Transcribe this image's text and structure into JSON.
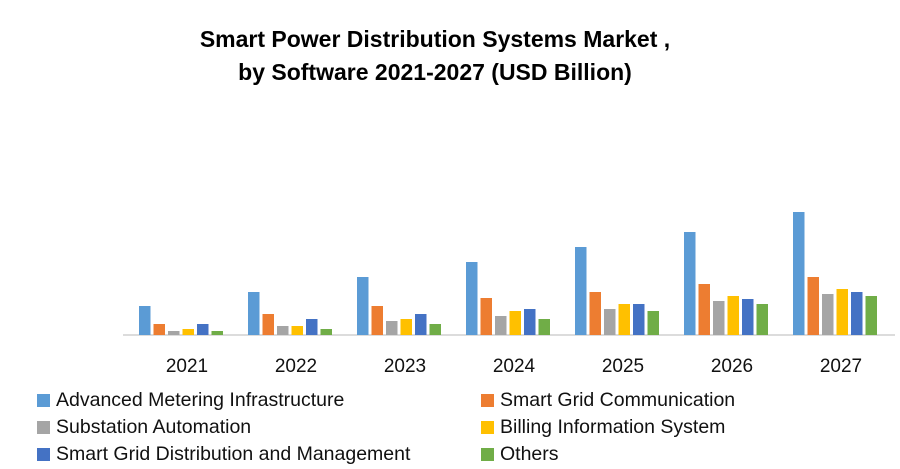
{
  "chart_data": {
    "type": "bar",
    "title": "Smart Power Distribution Systems Market ,",
    "subtitle": "by Software 2021-2027 (USD Billion)",
    "xlabel": "",
    "ylabel": "",
    "ylim": [
      0,
      13.5
    ],
    "grid": false,
    "legend_placement": "bottom",
    "categories": [
      "2021",
      "2022",
      "2023",
      "2024",
      "2025",
      "2026",
      "2027"
    ],
    "series": [
      {
        "name": "Advanced Metering Infrastructure",
        "color": "#5B9BD5",
        "values": [
          2.9,
          4.3,
          5.8,
          7.3,
          8.8,
          10.3,
          12.3
        ]
      },
      {
        "name": "Smart Grid Communication",
        "color": "#ED7D31",
        "values": [
          1.1,
          2.1,
          2.9,
          3.7,
          4.3,
          5.1,
          5.8
        ]
      },
      {
        "name": "Substation Automation",
        "color": "#A5A5A5",
        "values": [
          0.4,
          0.9,
          1.4,
          1.9,
          2.6,
          3.4,
          4.1
        ]
      },
      {
        "name": "Billing Information System",
        "color": "#FFC000",
        "values": [
          0.6,
          0.9,
          1.6,
          2.4,
          3.1,
          3.9,
          4.6
        ]
      },
      {
        "name": "Smart Grid Distribution and Management",
        "color": "#4472C4",
        "values": [
          1.1,
          1.6,
          2.1,
          2.6,
          3.1,
          3.6,
          4.3
        ]
      },
      {
        "name": "Others",
        "color": "#70AD47",
        "values": [
          0.4,
          0.6,
          1.1,
          1.6,
          2.4,
          3.1,
          3.9
        ]
      }
    ]
  }
}
